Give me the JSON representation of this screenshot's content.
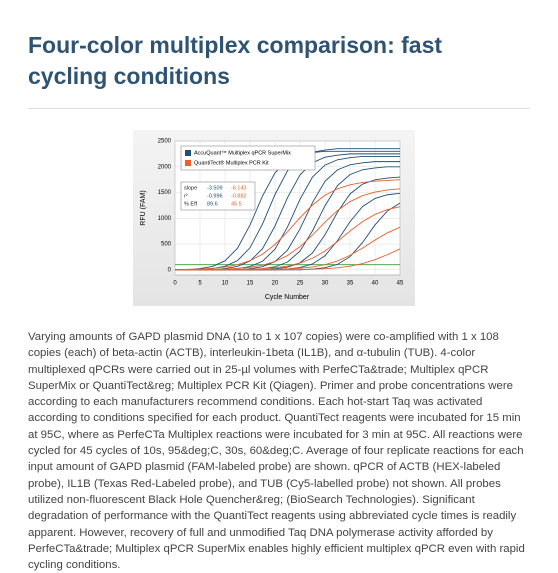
{
  "header": {
    "title": "Four-color multiplex comparison: fast cycling conditions"
  },
  "chart_data": {
    "type": "line",
    "xlabel": "Cycle Number",
    "ylabel": "RFU (FAM)",
    "x": [
      0,
      2.5,
      5,
      7.5,
      10,
      12.5,
      15,
      17.5,
      20,
      22.5,
      25,
      27.5,
      30,
      32.5,
      35,
      37.5,
      40,
      42.5,
      45
    ],
    "xlim": [
      0,
      45
    ],
    "xticks": [
      0,
      5,
      10,
      15,
      20,
      25,
      30,
      35,
      40,
      45
    ],
    "ylim": [
      -100,
      2500
    ],
    "yticks": [
      0,
      500,
      1000,
      1500,
      2000,
      2500
    ],
    "grid": true,
    "threshold": 100,
    "threshold_color": "#3a9a3a",
    "series": [
      {
        "name": "AccuQuant™ Multiplex qPCR SuperMix",
        "color": "#1f4e79",
        "values": [
          [
            0,
            0,
            25,
            67,
            175,
            419,
            869,
            1431,
            1881,
            2125,
            2233,
            2275,
            2300,
            2300,
            2300,
            2300,
            2300,
            2300,
            2300
          ],
          [
            0,
            0,
            0,
            26,
            68,
            179,
            428,
            888,
            1462,
            1922,
            2171,
            2282,
            2324,
            2350,
            2350,
            2350,
            2350,
            2350,
            2350
          ],
          [
            0,
            0,
            0,
            0,
            25,
            65,
            171,
            410,
            851,
            1400,
            1841,
            2079,
            2185,
            2225,
            2250,
            2250,
            2250,
            2250,
            2250
          ],
          [
            0,
            0,
            0,
            0,
            0,
            24,
            64,
            167,
            400,
            832,
            1368,
            1800,
            2033,
            2136,
            2176,
            2200,
            2200,
            2200,
            2200
          ],
          [
            0,
            0,
            0,
            0,
            0,
            0,
            23,
            61,
            160,
            382,
            794,
            1306,
            1718,
            1940,
            2039,
            2077,
            2100,
            2100,
            2100
          ],
          [
            0,
            0,
            0,
            0,
            0,
            0,
            0,
            22,
            58,
            152,
            364,
            756,
            1244,
            1636,
            1848,
            1942,
            1978,
            2000,
            2000
          ],
          [
            0,
            0,
            0,
            0,
            0,
            0,
            0,
            0,
            20,
            52,
            137,
            328,
            680,
            1120,
            1472,
            1663,
            1748,
            1780,
            1800
          ],
          [
            0,
            0,
            0,
            0,
            0,
            0,
            0,
            0,
            0,
            17,
            44,
            114,
            273,
            567,
            933,
            1227,
            1386,
            1457,
            1484
          ],
          [
            0,
            0,
            0,
            0,
            0,
            0,
            0,
            0,
            0,
            0,
            0,
            15,
            41,
            106,
            255,
            529,
            871,
            1145,
            1294
          ]
        ]
      },
      {
        "name": "QuantiTect® Multiplex PCR Kit",
        "color": "#e8602c",
        "values": [
          [
            0,
            9,
            16,
            30,
            54,
            100,
            177,
            303,
            492,
            739,
            1012,
            1258,
            1447,
            1573,
            1650,
            1696,
            1720,
            1734,
            1750
          ],
          [
            0,
            0,
            0,
            8,
            14,
            27,
            50,
            91,
            162,
            277,
            450,
            675,
            925,
            1150,
            1323,
            1438,
            1509,
            1550,
            1573
          ],
          [
            0,
            0,
            0,
            0,
            0,
            7,
            12,
            22,
            40,
            74,
            131,
            225,
            365,
            549,
            751,
            935,
            1075,
            1169,
            1226
          ],
          [
            0,
            0,
            0,
            0,
            0,
            0,
            0,
            5,
            9,
            17,
            31,
            57,
            101,
            173,
            281,
            422,
            578,
            719,
            827
          ],
          [
            0,
            0,
            0,
            0,
            0,
            0,
            0,
            0,
            0,
            4,
            6,
            12,
            22,
            40,
            71,
            121,
            197,
            295,
            405
          ]
        ]
      }
    ],
    "stats": [
      [
        "slope",
        "-3.509",
        "-6.143"
      ],
      [
        "r²",
        "-0.996",
        "-0.882"
      ],
      [
        "% Eff",
        "89.6",
        "45.5"
      ]
    ]
  },
  "body": {
    "text": "Varying amounts of GAPD plasmid DNA (10 to 1 x 107 copies) were co-amplified with 1 x 108 copies (each) of beta-actin (ACTB), interleukin-1beta (IL1B), and α-tubulin (TUB). 4-color multiplexed qPCRs were carried out in 25-µl volumes with PerfeCTa&trade; Multiplex qPCR SuperMix or QuantiTect&reg; Multiplex PCR Kit (Qiagen). Primer and probe concentrations were according to each manufacturers recommend conditions. Each hot-start Taq was activated according to conditions specified for each product. QuantiTect reagents were incubated for 15 min at 95C, where as PerfeCTa Multiplex reactions were incubated for 3 min at 95C. All reactions were cycled for 45 cycles of 10s, 95&deg;C, 30s, 60&deg;C. Average of four replicate reactions for each input amount of GAPD plasmid (FAM-labeled probe) are shown. qPCR of ACTB (HEX-labeled probe), IL1B (Texas Red-Labeled probe), and TUB (Cy5-labelled probe) not shown. All probes utilized non-fluorescent Black Hole Quencher&reg; (BioSearch Technologies). Significant degradation of performance with the QuantiTect reagents using abbreviated cycle times is readily apparent. However, recovery of full and unmodified Taq DNA polymerase activity afforded by PerfeCTa&trade; Multiplex qPCR SuperMix enables highly efficient multiplex qPCR even with rapid cycling conditions."
  }
}
